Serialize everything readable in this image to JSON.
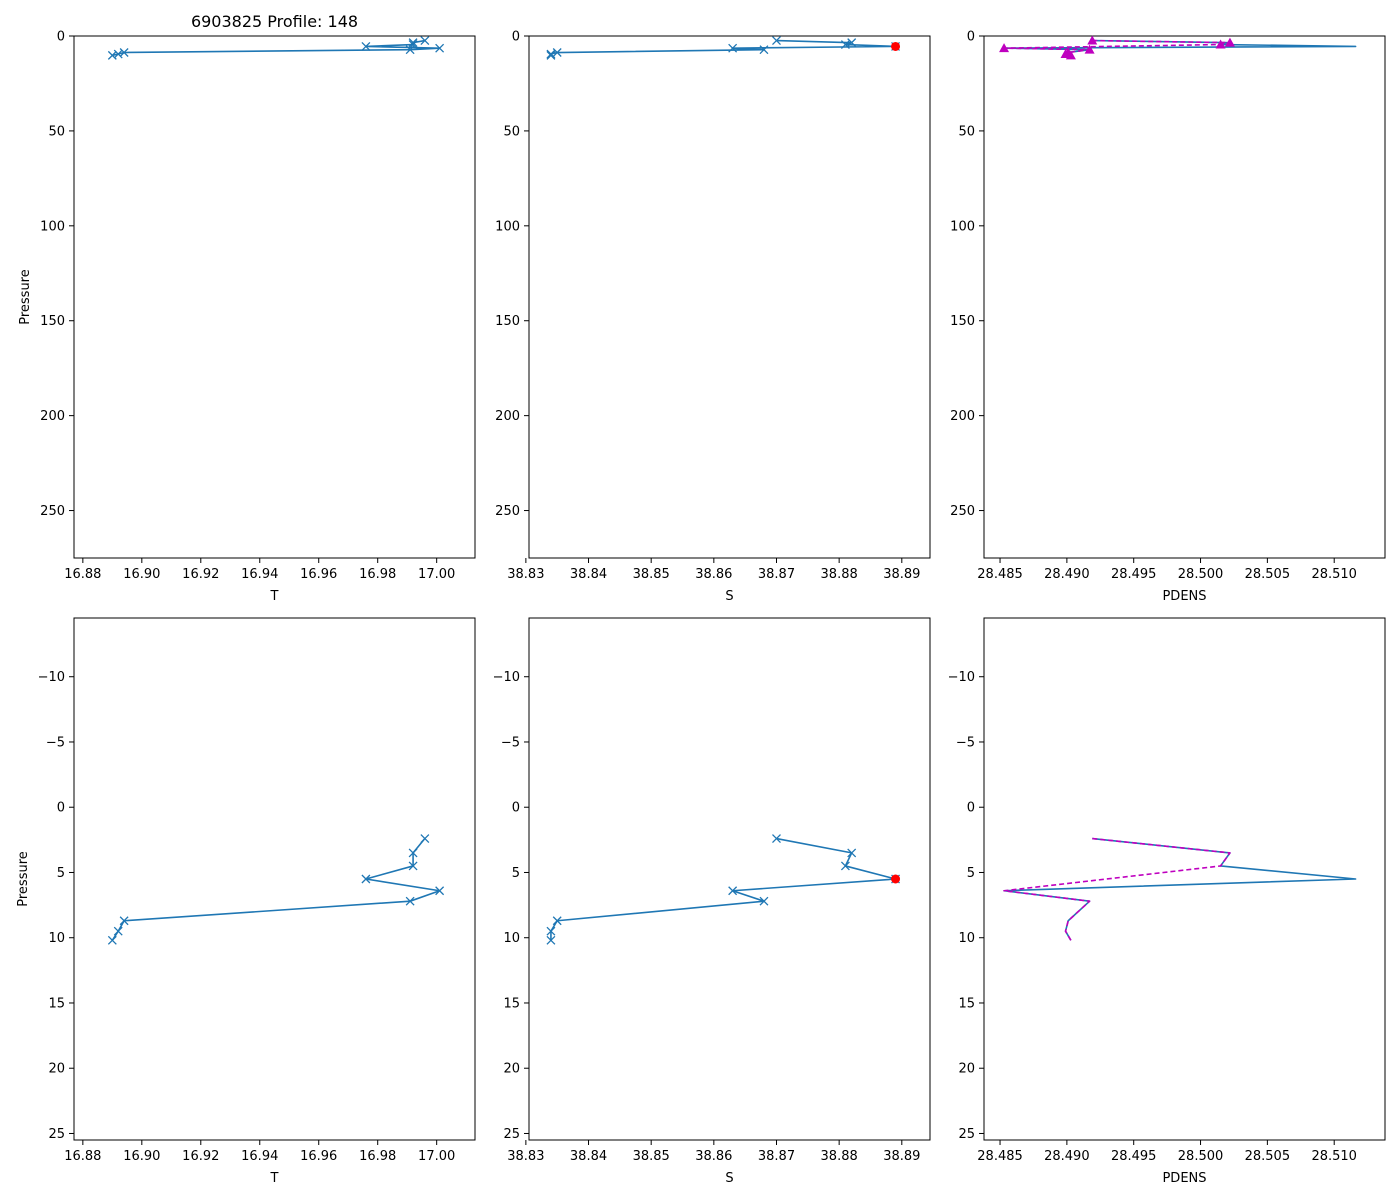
{
  "figure": {
    "background": "#ffffff"
  },
  "colors": {
    "line": "#1f77b4",
    "flag": "#ff0000",
    "density": "#bf00bf"
  },
  "chart_data": [
    {
      "id": "top-temperature",
      "type": "line",
      "title": "6903825 Profile: 148",
      "xlabel": "T",
      "ylabel": "Pressure",
      "xlim": [
        16.877,
        17.013
      ],
      "ylim": [
        275,
        0
      ],
      "xticks": [
        16.88,
        16.9,
        16.92,
        16.94,
        16.96,
        16.98,
        17.0
      ],
      "xtick_labels": [
        "16.88",
        "16.90",
        "16.92",
        "16.94",
        "16.96",
        "16.98",
        "17.00"
      ],
      "yticks": [
        0,
        50,
        100,
        150,
        200,
        250
      ],
      "ytick_labels": [
        "0",
        "50",
        "100",
        "150",
        "200",
        "250"
      ],
      "series": [
        {
          "name": "T",
          "marker": "x",
          "x": [
            16.996,
            16.992,
            16.992,
            16.976,
            17.001,
            16.991,
            16.894,
            16.892,
            16.89
          ],
          "y": [
            2.4,
            3.5,
            4.5,
            5.5,
            6.4,
            7.2,
            8.7,
            9.5,
            10.2
          ]
        }
      ]
    },
    {
      "id": "top-salinity",
      "type": "line",
      "title": "",
      "xlabel": "S",
      "ylabel": "",
      "xlim": [
        38.8305,
        38.8945
      ],
      "ylim": [
        275,
        0
      ],
      "xticks": [
        38.83,
        38.84,
        38.85,
        38.86,
        38.87,
        38.88,
        38.89
      ],
      "xtick_labels": [
        "38.83",
        "38.84",
        "38.85",
        "38.86",
        "38.87",
        "38.88",
        "38.89"
      ],
      "yticks": [
        0,
        50,
        100,
        150,
        200,
        250
      ],
      "ytick_labels": [
        "0",
        "50",
        "100",
        "150",
        "200",
        "250"
      ],
      "series": [
        {
          "name": "S",
          "marker": "x",
          "x": [
            38.87,
            38.882,
            38.881,
            38.889,
            38.863,
            38.868,
            38.835,
            38.834,
            38.834
          ],
          "y": [
            2.4,
            3.5,
            4.5,
            5.5,
            6.4,
            7.2,
            8.7,
            9.5,
            10.2
          ]
        },
        {
          "name": "S flagged",
          "marker": "dot",
          "x": [
            38.889
          ],
          "y": [
            5.5
          ]
        }
      ]
    },
    {
      "id": "top-density",
      "type": "line",
      "title": "",
      "xlabel": "PDENS",
      "ylabel": "",
      "xlim": [
        28.4838,
        28.5138
      ],
      "ylim": [
        275,
        0
      ],
      "xticks": [
        28.485,
        28.49,
        28.495,
        28.5,
        28.505,
        28.51
      ],
      "xtick_labels": [
        "28.485",
        "28.490",
        "28.495",
        "28.500",
        "28.505",
        "28.510"
      ],
      "yticks": [
        0,
        50,
        100,
        150,
        200,
        250
      ],
      "ytick_labels": [
        "0",
        "50",
        "100",
        "150",
        "200",
        "250"
      ],
      "series": [
        {
          "name": "PDENS",
          "marker": "none",
          "x": [
            28.4919,
            28.5022,
            28.5015,
            28.5116,
            28.4853,
            28.4917,
            28.4901,
            28.4899,
            28.4903
          ],
          "y": [
            2.4,
            3.5,
            4.5,
            5.5,
            6.4,
            7.2,
            8.7,
            9.5,
            10.2
          ]
        },
        {
          "name": "PDENS sorted",
          "marker": "triangle",
          "dashed": true,
          "x": [
            28.4919,
            28.5022,
            28.5015,
            28.4853,
            28.4917,
            28.4901,
            28.4899,
            28.4903
          ],
          "y": [
            2.4,
            3.5,
            4.5,
            6.4,
            7.2,
            8.7,
            9.5,
            10.2
          ]
        }
      ]
    },
    {
      "id": "bottom-temperature",
      "type": "line",
      "title": "",
      "xlabel": "T",
      "ylabel": "Pressure",
      "xlim": [
        16.877,
        17.013
      ],
      "ylim": [
        25.5,
        -14.5
      ],
      "xticks": [
        16.88,
        16.9,
        16.92,
        16.94,
        16.96,
        16.98,
        17.0
      ],
      "xtick_labels": [
        "16.88",
        "16.90",
        "16.92",
        "16.94",
        "16.96",
        "16.98",
        "17.00"
      ],
      "yticks": [
        -10,
        -5,
        0,
        5,
        10,
        15,
        20,
        25
      ],
      "ytick_labels": [
        "−10",
        "−5",
        "0",
        "5",
        "10",
        "15",
        "20",
        "25"
      ],
      "series": [
        {
          "name": "T",
          "marker": "x",
          "x": [
            16.996,
            16.992,
            16.992,
            16.976,
            17.001,
            16.991,
            16.894,
            16.892,
            16.89
          ],
          "y": [
            2.4,
            3.5,
            4.5,
            5.5,
            6.4,
            7.2,
            8.7,
            9.5,
            10.2
          ]
        }
      ]
    },
    {
      "id": "bottom-salinity",
      "type": "line",
      "title": "",
      "xlabel": "S",
      "ylabel": "",
      "xlim": [
        38.8305,
        38.8945
      ],
      "ylim": [
        25.5,
        -14.5
      ],
      "xticks": [
        38.83,
        38.84,
        38.85,
        38.86,
        38.87,
        38.88,
        38.89
      ],
      "xtick_labels": [
        "38.83",
        "38.84",
        "38.85",
        "38.86",
        "38.87",
        "38.88",
        "38.89"
      ],
      "yticks": [
        -10,
        -5,
        0,
        5,
        10,
        15,
        20,
        25
      ],
      "ytick_labels": [
        "−10",
        "−5",
        "0",
        "5",
        "10",
        "15",
        "20",
        "25"
      ],
      "series": [
        {
          "name": "S",
          "marker": "x",
          "x": [
            38.87,
            38.882,
            38.881,
            38.889,
            38.863,
            38.868,
            38.835,
            38.834,
            38.834
          ],
          "y": [
            2.4,
            3.5,
            4.5,
            5.5,
            6.4,
            7.2,
            8.7,
            9.5,
            10.2
          ]
        },
        {
          "name": "S flagged",
          "marker": "dot",
          "x": [
            38.889
          ],
          "y": [
            5.5
          ]
        }
      ]
    },
    {
      "id": "bottom-density",
      "type": "line",
      "title": "",
      "xlabel": "PDENS",
      "ylabel": "",
      "xlim": [
        28.4838,
        28.5138
      ],
      "ylim": [
        25.5,
        -14.5
      ],
      "xticks": [
        28.485,
        28.49,
        28.495,
        28.5,
        28.505,
        28.51
      ],
      "xtick_labels": [
        "28.485",
        "28.490",
        "28.495",
        "28.500",
        "28.505",
        "28.510"
      ],
      "yticks": [
        -10,
        -5,
        0,
        5,
        10,
        15,
        20,
        25
      ],
      "ytick_labels": [
        "−10",
        "−5",
        "0",
        "5",
        "10",
        "15",
        "20",
        "25"
      ],
      "series": [
        {
          "name": "PDENS",
          "marker": "none",
          "x": [
            28.4919,
            28.5022,
            28.5015,
            28.5116,
            28.4853,
            28.4917,
            28.4901,
            28.4899,
            28.4903
          ],
          "y": [
            2.4,
            3.5,
            4.5,
            5.5,
            6.4,
            7.2,
            8.7,
            9.5,
            10.2
          ]
        },
        {
          "name": "PDENS sorted",
          "marker": "none",
          "dashed": true,
          "x": [
            28.4919,
            28.5022,
            28.5015,
            28.4853,
            28.4917,
            28.4901,
            28.4899,
            28.4903
          ],
          "y": [
            2.4,
            3.5,
            4.5,
            6.4,
            7.2,
            8.7,
            9.5,
            10.2
          ]
        }
      ]
    }
  ]
}
